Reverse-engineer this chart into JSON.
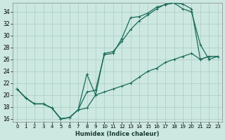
{
  "xlabel": "Humidex (Indice chaleur)",
  "bg_color": "#cce8e0",
  "grid_color": "#aaccC4",
  "line_color": "#1a6b5a",
  "xlim": [
    -0.5,
    23.5
  ],
  "ylim": [
    15.5,
    35.5
  ],
  "xticks": [
    0,
    1,
    2,
    3,
    4,
    5,
    6,
    7,
    8,
    9,
    10,
    11,
    12,
    13,
    14,
    15,
    16,
    17,
    18,
    19,
    20,
    21,
    22,
    23
  ],
  "yticks": [
    16,
    18,
    20,
    22,
    24,
    26,
    28,
    30,
    32,
    34
  ],
  "line1_x": [
    0,
    1,
    2,
    3,
    4,
    5,
    6,
    7,
    8,
    9,
    10,
    11,
    12,
    13,
    14,
    15,
    16,
    17,
    18,
    19,
    20,
    21,
    22,
    23
  ],
  "line1_y": [
    21,
    19.5,
    18.5,
    18.5,
    17.8,
    16.0,
    16.2,
    17.5,
    20.5,
    20.8,
    26.8,
    27.0,
    29.5,
    33.0,
    33.2,
    33.8,
    34.8,
    35.2,
    35.5,
    34.5,
    34.0,
    28.5,
    26.0,
    26.5
  ],
  "line2_x": [
    0,
    1,
    2,
    3,
    4,
    5,
    6,
    7,
    8,
    9,
    10,
    11,
    12,
    13,
    14,
    15,
    16,
    17,
    18,
    19,
    20,
    21,
    22,
    23
  ],
  "line2_y": [
    21,
    19.5,
    18.5,
    18.5,
    17.8,
    16.0,
    16.2,
    17.5,
    23.5,
    20.0,
    27.0,
    27.3,
    29.0,
    31.0,
    32.5,
    33.5,
    34.5,
    35.3,
    35.5,
    35.3,
    34.5,
    26.0,
    26.5,
    26.5
  ],
  "line3_x": [
    0,
    1,
    2,
    3,
    4,
    5,
    6,
    7,
    8,
    9,
    10,
    11,
    12,
    13,
    14,
    15,
    16,
    17,
    18,
    19,
    20,
    21,
    22,
    23
  ],
  "line3_y": [
    21,
    19.5,
    18.5,
    18.5,
    17.8,
    16.0,
    16.2,
    17.5,
    17.8,
    20.0,
    20.5,
    21.0,
    21.5,
    22.0,
    23.0,
    24.0,
    24.5,
    25.5,
    26.0,
    26.5,
    27.0,
    26.0,
    26.5,
    26.5
  ]
}
